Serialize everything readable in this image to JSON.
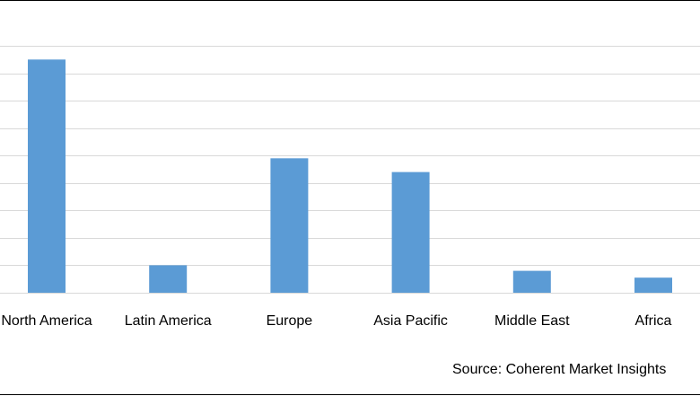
{
  "chart_data": {
    "type": "bar",
    "categories": [
      "North America",
      "Latin America",
      "Europe",
      "Asia Pacific",
      "Middle East",
      "Africa"
    ],
    "values": [
      8.5,
      1.0,
      4.9,
      4.4,
      0.8,
      0.55
    ],
    "title": "",
    "xlabel": "",
    "ylabel": "",
    "ylim": [
      0,
      9
    ],
    "grid": true,
    "bar_color": "#5b9bd5",
    "grid_color": "#d9d9d9",
    "axis_color": "#d9d9d9"
  },
  "source": "Source: Coherent Market Insights"
}
